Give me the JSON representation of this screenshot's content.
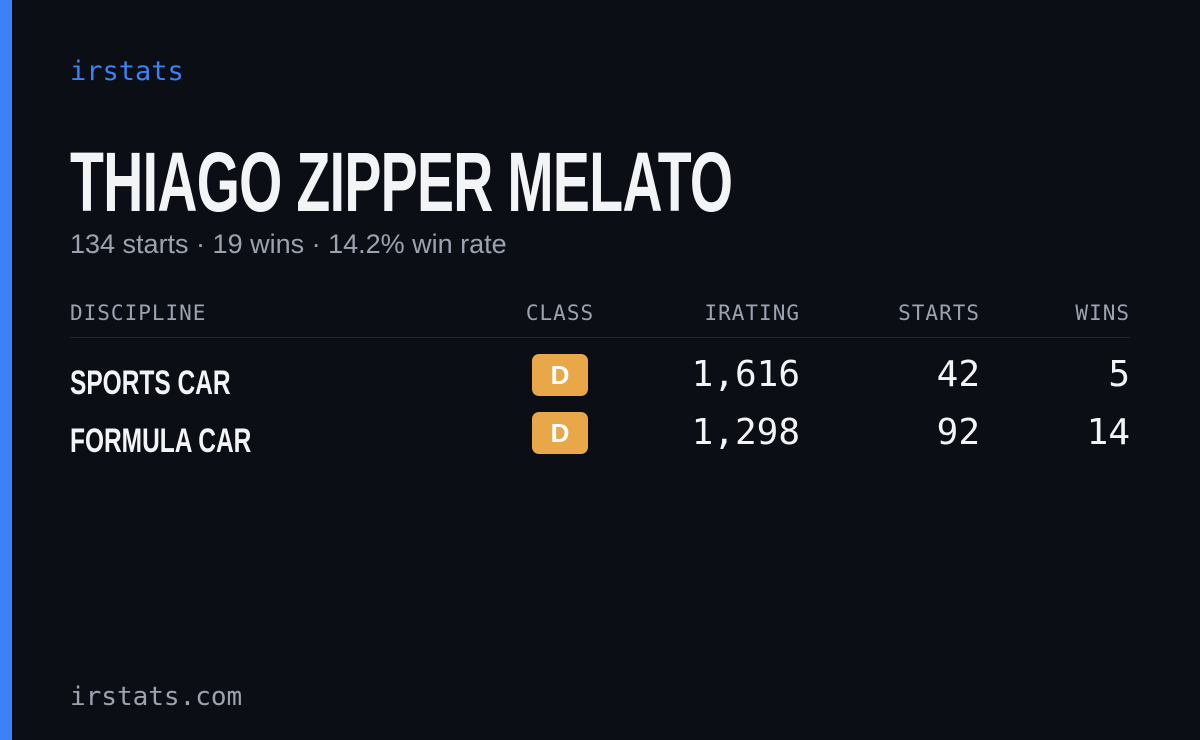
{
  "brand": "irstats",
  "title": "THIAGO ZIPPER MELATO",
  "subtitle": "134 starts · 19 wins · 14.2% win rate",
  "table": {
    "headers": [
      "DISCIPLINE",
      "CLASS",
      "IRATING",
      "STARTS",
      "WINS"
    ],
    "rows": [
      [
        "SPORTS CAR",
        "D",
        "1,616",
        42,
        5
      ],
      [
        "FORMULA CAR",
        "D",
        "1,298",
        92,
        14
      ]
    ]
  },
  "footer": "irstats.com"
}
